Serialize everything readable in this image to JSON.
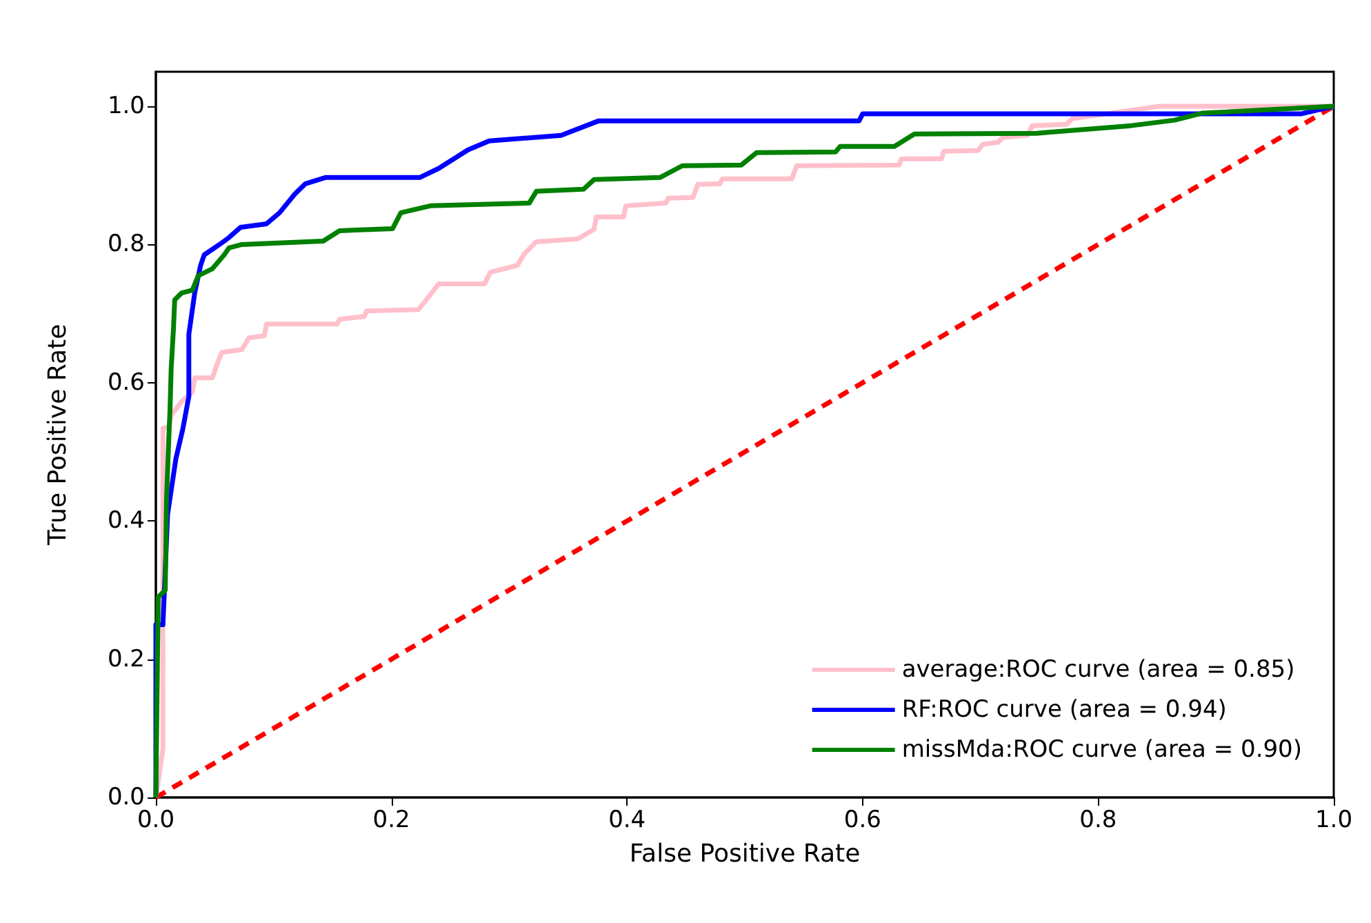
{
  "chart_data": {
    "type": "line",
    "xlabel": "False Positive Rate",
    "ylabel": "True Positive Rate",
    "xlim": [
      0,
      1
    ],
    "ylim": [
      0,
      1.05
    ],
    "xticks": [
      {
        "value": 0,
        "label": "0.0"
      },
      {
        "value": 0.2,
        "label": "0.2"
      },
      {
        "value": 0.4,
        "label": "0.4"
      },
      {
        "value": 0.6,
        "label": "0.6"
      },
      {
        "value": 0.8,
        "label": "0.8"
      },
      {
        "value": 1,
        "label": "1.0"
      }
    ],
    "yticks": [
      {
        "value": 0,
        "label": "0.0"
      },
      {
        "value": 0.2,
        "label": "0.2"
      },
      {
        "value": 0.4,
        "label": "0.4"
      },
      {
        "value": 0.6,
        "label": "0.6"
      },
      {
        "value": 0.8,
        "label": "0.8"
      },
      {
        "value": 1,
        "label": "1.0"
      }
    ],
    "grid": false,
    "legend": "bottom right",
    "marker": "none",
    "series": [
      {
        "name": "average:ROC curve (area = 0.85)",
        "color": "#ffc0cb",
        "x": [
          0,
          0.006,
          0.006,
          0.011,
          0.013,
          0.022,
          0.031,
          0.033,
          0.048,
          0.052,
          0.056,
          0.073,
          0.079,
          0.092,
          0.094,
          0.154,
          0.156,
          0.177,
          0.179,
          0.223,
          0.231,
          0.24,
          0.279,
          0.284,
          0.307,
          0.313,
          0.323,
          0.357,
          0.359,
          0.372,
          0.374,
          0.397,
          0.399,
          0.433,
          0.435,
          0.456,
          0.46,
          0.479,
          0.481,
          0.54,
          0.544,
          0.631,
          0.633,
          0.667,
          0.669,
          0.698,
          0.702,
          0.715,
          0.719,
          0.74,
          0.744,
          0.773,
          0.778,
          0.851,
          1
        ],
        "values": [
          0,
          0.07,
          0.534,
          0.537,
          0.553,
          0.573,
          0.587,
          0.607,
          0.607,
          0.627,
          0.644,
          0.648,
          0.665,
          0.668,
          0.685,
          0.685,
          0.692,
          0.696,
          0.704,
          0.706,
          0.723,
          0.743,
          0.743,
          0.76,
          0.77,
          0.787,
          0.804,
          0.808,
          0.809,
          0.822,
          0.84,
          0.84,
          0.856,
          0.86,
          0.867,
          0.868,
          0.887,
          0.888,
          0.895,
          0.895,
          0.914,
          0.915,
          0.924,
          0.924,
          0.935,
          0.936,
          0.945,
          0.948,
          0.955,
          0.958,
          0.972,
          0.974,
          0.982,
          1,
          1
        ]
      },
      {
        "name": "RF:ROC curve (area = 0.94)",
        "color": "#0000ff",
        "x": [
          0,
          0,
          0.006,
          0.01,
          0.017,
          0.023,
          0.028,
          0.028,
          0.033,
          0.038,
          0.041,
          0.054,
          0.062,
          0.072,
          0.094,
          0.105,
          0.118,
          0.127,
          0.144,
          0.224,
          0.24,
          0.265,
          0.283,
          0.344,
          0.376,
          0.597,
          0.6,
          0.972,
          1
        ],
        "values": [
          0,
          0.25,
          0.25,
          0.41,
          0.49,
          0.534,
          0.58,
          0.67,
          0.73,
          0.77,
          0.785,
          0.8,
          0.81,
          0.825,
          0.83,
          0.846,
          0.873,
          0.888,
          0.897,
          0.897,
          0.91,
          0.937,
          0.95,
          0.958,
          0.979,
          0.979,
          0.989,
          0.989,
          1
        ]
      },
      {
        "name": "missMda:ROC curve (area = 0.90)",
        "color": "#008000",
        "x": [
          0,
          0.002,
          0.008,
          0.009,
          0.011,
          0.012,
          0.013,
          0.015,
          0.016,
          0.022,
          0.031,
          0.036,
          0.048,
          0.058,
          0.062,
          0.073,
          0.142,
          0.156,
          0.201,
          0.208,
          0.233,
          0.317,
          0.323,
          0.363,
          0.372,
          0.428,
          0.447,
          0.497,
          0.51,
          0.577,
          0.581,
          0.627,
          0.644,
          0.748,
          0.828,
          0.865,
          0.888,
          1
        ],
        "values": [
          0,
          0.29,
          0.3,
          0.43,
          0.52,
          0.56,
          0.62,
          0.68,
          0.72,
          0.73,
          0.734,
          0.755,
          0.765,
          0.785,
          0.795,
          0.8,
          0.805,
          0.82,
          0.823,
          0.846,
          0.856,
          0.86,
          0.877,
          0.88,
          0.894,
          0.897,
          0.914,
          0.915,
          0.933,
          0.934,
          0.942,
          0.942,
          0.96,
          0.961,
          0.972,
          0.98,
          0.99,
          1
        ]
      },
      {
        "color": "#ff0000",
        "line_style": "dashed",
        "x": [
          0,
          1
        ],
        "values": [
          0,
          1
        ]
      }
    ]
  }
}
